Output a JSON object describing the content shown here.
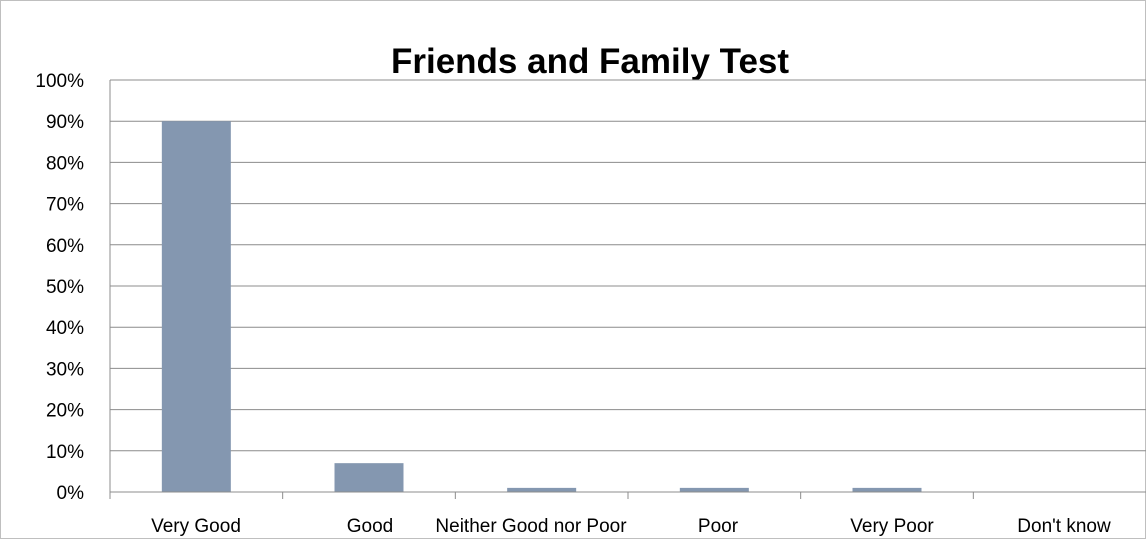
{
  "chart_data": {
    "type": "bar",
    "title": "Friends and Family Test",
    "categories": [
      "Very Good",
      "Good",
      "Neither Good nor Poor",
      "Poor",
      "Very Poor",
      "Don't know"
    ],
    "values": [
      90,
      7,
      1,
      1,
      1,
      0
    ],
    "value_unit": "%",
    "ylim": [
      0,
      100
    ],
    "yticks": [
      "0%",
      "10%",
      "20%",
      "30%",
      "40%",
      "50%",
      "60%",
      "70%",
      "80%",
      "90%",
      "100%"
    ],
    "xlabel": "",
    "ylabel": "",
    "grid": true,
    "legend": "none",
    "colors": {
      "bar": "#8497B0",
      "gridline": "#8C8C8C",
      "axis": "#8C8C8C",
      "border": "#BFBFBF",
      "text": "#000000"
    }
  }
}
